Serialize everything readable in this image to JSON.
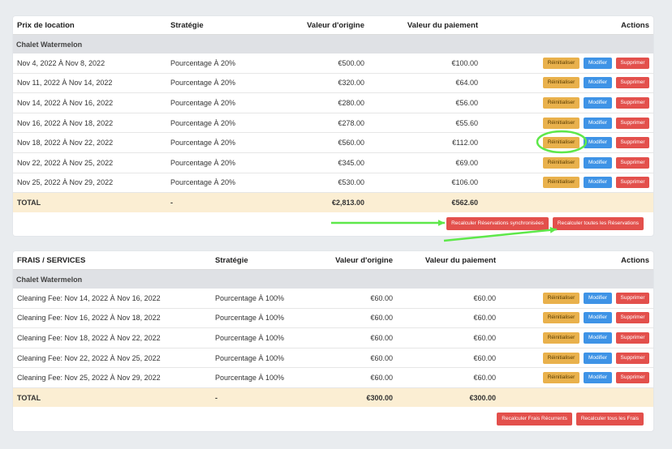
{
  "table1": {
    "headers": [
      "Prix de location",
      "Stratégie",
      "Valeur d'origine",
      "Valeur du paiement",
      "Actions"
    ],
    "group": "Chalet Watermelon",
    "rows": [
      [
        "Nov 4, 2022 À Nov 8, 2022",
        "Pourcentage À 20%",
        "€500.00",
        "€100.00"
      ],
      [
        "Nov 11, 2022 À Nov 14, 2022",
        "Pourcentage À 20%",
        "€320.00",
        "€64.00"
      ],
      [
        "Nov 14, 2022 À Nov 16, 2022",
        "Pourcentage À 20%",
        "€280.00",
        "€56.00"
      ],
      [
        "Nov 16, 2022 À Nov 18, 2022",
        "Pourcentage À 20%",
        "€278.00",
        "€55.60"
      ],
      [
        "Nov 18, 2022 À Nov 22, 2022",
        "Pourcentage À 20%",
        "€560.00",
        "€112.00"
      ],
      [
        "Nov 22, 2022 À Nov 25, 2022",
        "Pourcentage À 20%",
        "€345.00",
        "€69.00"
      ],
      [
        "Nov 25, 2022 À Nov 29, 2022",
        "Pourcentage À 20%",
        "€530.00",
        "€106.00"
      ]
    ],
    "total": [
      "TOTAL",
      "-",
      "€2,813.00",
      "€562.60"
    ],
    "footer_buttons": [
      "Recalculer Réservations synchronisées",
      "Recalculer toutes les Réservations"
    ]
  },
  "table2": {
    "headers": [
      "FRAIS / SERVICES",
      "Stratégie",
      "Valeur d'origine",
      "Valeur du paiement",
      "Actions"
    ],
    "group": "Chalet Watermelon",
    "rows": [
      [
        "Cleaning Fee: Nov 14, 2022 À Nov 16, 2022",
        "Pourcentage À 100%",
        "€60.00",
        "€60.00"
      ],
      [
        "Cleaning Fee: Nov 16, 2022 À Nov 18, 2022",
        "Pourcentage À 100%",
        "€60.00",
        "€60.00"
      ],
      [
        "Cleaning Fee: Nov 18, 2022 À Nov 22, 2022",
        "Pourcentage À 100%",
        "€60.00",
        "€60.00"
      ],
      [
        "Cleaning Fee: Nov 22, 2022 À Nov 25, 2022",
        "Pourcentage À 100%",
        "€60.00",
        "€60.00"
      ],
      [
        "Cleaning Fee: Nov 25, 2022 À Nov 29, 2022",
        "Pourcentage À 100%",
        "€60.00",
        "€60.00"
      ]
    ],
    "total": [
      "TOTAL",
      "-",
      "€300.00",
      "€300.00"
    ],
    "footer_buttons": [
      "Recalculer Frais Récurrents",
      "Recalculer tous les Frais"
    ]
  },
  "actions": {
    "reset": "Réinitialiser",
    "edit": "Modifier",
    "delete": "Supprimer"
  },
  "colors": {
    "reset": "#e9b14c",
    "edit": "#3e93e6",
    "delete": "#e3504c",
    "total_bg": "#fbeed3",
    "group_bg": "#dfe1e5",
    "annotation": "#5ee84a"
  }
}
